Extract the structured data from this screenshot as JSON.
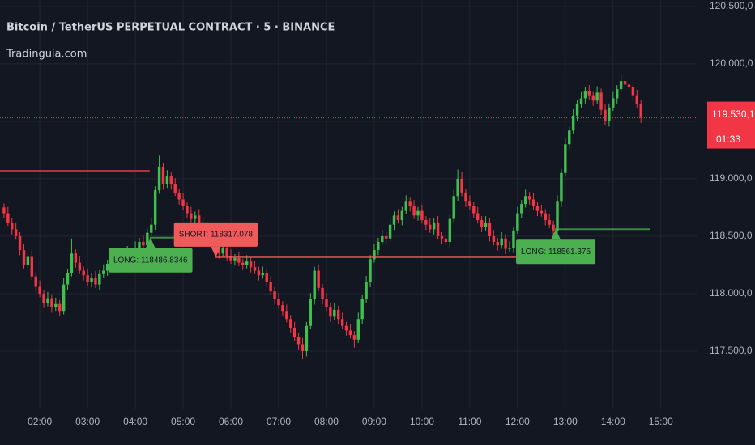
{
  "chart_data": {
    "type": "candlestick",
    "title": "Bitcoin / TetherUS PERPETUAL CONTRACT · 5 · BINANCE",
    "subtitle": "Tradinguia.com",
    "up_color": "#3fbf4f",
    "down_color": "#f23645",
    "xlim": [
      70,
      945
    ],
    "ylim": [
      117000,
      120555
    ],
    "grid": true,
    "xticks": [
      {
        "value": 120,
        "label": "02:00"
      },
      {
        "value": 180,
        "label": "03:00"
      },
      {
        "value": 240,
        "label": "04:00"
      },
      {
        "value": 300,
        "label": "05:00"
      },
      {
        "value": 360,
        "label": "06:00"
      },
      {
        "value": 420,
        "label": "07:00"
      },
      {
        "value": 480,
        "label": "08:00"
      },
      {
        "value": 540,
        "label": "09:00"
      },
      {
        "value": 600,
        "label": "10:00"
      },
      {
        "value": 660,
        "label": "11:00"
      },
      {
        "value": 720,
        "label": "12:00"
      },
      {
        "value": 780,
        "label": "13:00"
      },
      {
        "value": 840,
        "label": "14:00"
      },
      {
        "value": 900,
        "label": "15:00"
      }
    ],
    "yticks": [
      {
        "value": 117500,
        "label": "117.500,0"
      },
      {
        "value": 118000,
        "label": "118.000,0"
      },
      {
        "value": 118500,
        "label": "118.500,0"
      },
      {
        "value": 119000,
        "label": "119.000,0"
      },
      {
        "value": 119500,
        "label": "119.500,0"
      },
      {
        "value": 120000,
        "label": "120.000,0"
      },
      {
        "value": 120500,
        "label": "120.500,0"
      }
    ],
    "x": [
      75,
      80,
      85,
      90,
      95,
      100,
      105,
      110,
      115,
      120,
      125,
      130,
      135,
      140,
      145,
      150,
      155,
      160,
      165,
      170,
      175,
      180,
      185,
      190,
      195,
      200,
      205,
      210,
      215,
      220,
      225,
      230,
      235,
      240,
      245,
      250,
      255,
      260,
      265,
      270,
      275,
      280,
      285,
      290,
      295,
      300,
      305,
      310,
      315,
      320,
      325,
      330,
      335,
      340,
      345,
      350,
      355,
      360,
      365,
      370,
      375,
      380,
      385,
      390,
      395,
      400,
      405,
      410,
      415,
      420,
      425,
      430,
      435,
      440,
      445,
      450,
      455,
      460,
      465,
      470,
      475,
      480,
      485,
      490,
      495,
      500,
      505,
      510,
      515,
      520,
      525,
      530,
      535,
      540,
      545,
      550,
      555,
      560,
      565,
      570,
      575,
      580,
      585,
      590,
      595,
      600,
      605,
      610,
      615,
      620,
      625,
      630,
      635,
      640,
      645,
      650,
      655,
      660,
      665,
      670,
      675,
      680,
      685,
      690,
      695,
      700,
      705,
      710,
      715,
      720,
      725,
      730,
      735,
      740,
      745,
      750,
      755,
      760,
      765,
      770,
      775,
      780,
      785,
      790,
      795,
      800,
      805,
      810,
      815,
      820,
      825,
      830,
      835,
      840,
      845,
      850,
      855,
      860,
      865,
      870,
      875
    ],
    "open": [
      118750,
      118700,
      118620,
      118560,
      118500,
      118380,
      118250,
      118320,
      118150,
      118060,
      118000,
      117920,
      117960,
      117880,
      117910,
      117850,
      118080,
      118180,
      118350,
      118270,
      118200,
      118160,
      118100,
      118140,
      118080,
      118170,
      118200,
      118260,
      118230,
      118300,
      118280,
      118330,
      118360,
      118310,
      118400,
      118450,
      118420,
      118530,
      118600,
      118900,
      119100,
      118950,
      119020,
      118950,
      118880,
      118820,
      118760,
      118700,
      118650,
      118680,
      118600,
      118620,
      118550,
      118480,
      118420,
      118350,
      118400,
      118330,
      118290,
      118310,
      118270,
      118250,
      118280,
      118230,
      118200,
      118160,
      118180,
      118100,
      118020,
      117950,
      117900,
      117850,
      117780,
      117700,
      117620,
      117560,
      117500,
      117720,
      117950,
      118200,
      118050,
      117950,
      117880,
      117800,
      117860,
      117780,
      117720,
      117680,
      117640,
      117600,
      117780,
      117950,
      118100,
      118300,
      118380,
      118450,
      118500,
      118480,
      118600,
      118680,
      118640,
      118720,
      118800,
      118760,
      118680,
      118720,
      118640,
      118600,
      118560,
      118620,
      118500,
      118480,
      118450,
      118650,
      118850,
      119000,
      118880,
      118800,
      118760,
      118700,
      118640,
      118580,
      118620,
      118500,
      118450,
      118420,
      118480,
      118390,
      118400,
      118550,
      118700,
      118780,
      118850,
      118820,
      118760,
      118720,
      118700,
      118640,
      118600,
      118550,
      118800,
      119050,
      119300,
      119420,
      119550,
      119650,
      119700,
      119760,
      119720,
      119680,
      119750,
      119600,
      119500,
      119620,
      119700,
      119780,
      119850,
      119820,
      119800,
      119720,
      119650
    ],
    "high": [
      118785,
      118755,
      118655,
      118615,
      118535,
      118435,
      118355,
      118375,
      118185,
      118115,
      118035,
      118015,
      117995,
      117965,
      117945,
      118135,
      118215,
      118480,
      118385,
      118325,
      118235,
      118215,
      118175,
      118195,
      118205,
      118255,
      118295,
      118315,
      118335,
      118355,
      118365,
      118415,
      118395,
      118455,
      118485,
      118505,
      118565,
      118655,
      118935,
      119200,
      119135,
      119075,
      119055,
      119005,
      118915,
      118875,
      118795,
      118755,
      118715,
      118735,
      118655,
      118675,
      118585,
      118535,
      118455,
      118455,
      118435,
      118385,
      118345,
      118365,
      118305,
      118335,
      118315,
      118285,
      118235,
      118235,
      118215,
      118155,
      118055,
      118005,
      117935,
      117905,
      117815,
      117755,
      117655,
      117615,
      117755,
      118005,
      118235,
      118255,
      118085,
      118005,
      117915,
      117915,
      117895,
      117835,
      117755,
      117735,
      117675,
      117835,
      117985,
      118155,
      118335,
      118435,
      118485,
      118555,
      118535,
      118655,
      118715,
      118735,
      118755,
      118855,
      118835,
      118815,
      118755,
      118775,
      118675,
      118655,
      118655,
      118675,
      118535,
      118535,
      118685,
      118905,
      119080,
      119055,
      118915,
      118855,
      118795,
      118755,
      118675,
      118675,
      118655,
      118555,
      118485,
      118535,
      118515,
      118455,
      118585,
      118755,
      118815,
      118905,
      118885,
      118875,
      118795,
      118775,
      118735,
      118695,
      118635,
      118855,
      119085,
      119355,
      119455,
      119605,
      119685,
      119755,
      119795,
      119815,
      119755,
      119805,
      119785,
      119655,
      119655,
      119755,
      119815,
      119905,
      119885,
      119875,
      119835,
      119775,
      119685
    ],
    "low": [
      118655,
      118590,
      118515,
      118470,
      118335,
      118220,
      118205,
      118120,
      118015,
      117970,
      117875,
      117890,
      117835,
      117850,
      117805,
      117820,
      118035,
      118150,
      118225,
      118170,
      118115,
      118070,
      118055,
      118050,
      118035,
      118140,
      118155,
      118200,
      118185,
      118250,
      118235,
      118300,
      118265,
      118280,
      118355,
      118390,
      118375,
      118500,
      118555,
      118870,
      118905,
      118920,
      118905,
      118850,
      118775,
      118730,
      118655,
      118620,
      118605,
      118570,
      118555,
      118520,
      118435,
      118390,
      118305,
      118320,
      118285,
      118260,
      118245,
      118240,
      118205,
      118220,
      118185,
      118170,
      118115,
      118130,
      118055,
      117990,
      117905,
      117870,
      117805,
      117750,
      117655,
      117590,
      117515,
      117430,
      117455,
      117690,
      117905,
      118020,
      117905,
      117850,
      117755,
      117770,
      117735,
      117690,
      117635,
      117610,
      117530,
      117570,
      117735,
      117920,
      118055,
      118270,
      118335,
      118420,
      118435,
      118450,
      118555,
      118610,
      118595,
      118690,
      118715,
      118650,
      118635,
      118610,
      118555,
      118530,
      118515,
      118470,
      118435,
      118420,
      118405,
      118620,
      118805,
      118850,
      118755,
      118730,
      118655,
      118610,
      118535,
      118550,
      118455,
      118420,
      118375,
      118390,
      118345,
      118360,
      118355,
      118520,
      118655,
      118750,
      118775,
      118730,
      118675,
      118670,
      118595,
      118570,
      118505,
      118520,
      118755,
      119020,
      119255,
      119390,
      119505,
      119620,
      119655,
      119690,
      119635,
      119650,
      119555,
      119470,
      119455,
      119590,
      119655,
      119750,
      119775,
      119770,
      119675,
      119620,
      119485
    ],
    "close": [
      118700,
      118620,
      118560,
      118500,
      118380,
      118250,
      118320,
      118150,
      118060,
      118000,
      117920,
      117960,
      117880,
      117910,
      117850,
      118080,
      118180,
      118350,
      118270,
      118200,
      118160,
      118100,
      118140,
      118080,
      118170,
      118200,
      118260,
      118230,
      118300,
      118280,
      118330,
      118360,
      118310,
      118400,
      118450,
      118420,
      118530,
      118600,
      118900,
      119100,
      118950,
      119020,
      118950,
      118880,
      118820,
      118760,
      118700,
      118650,
      118680,
      118600,
      118620,
      118550,
      118480,
      118420,
      118350,
      118400,
      118330,
      118290,
      118310,
      118270,
      118250,
      118280,
      118230,
      118200,
      118160,
      118180,
      118100,
      118020,
      117950,
      117900,
      117850,
      117780,
      117700,
      117620,
      117560,
      117500,
      117720,
      117950,
      118200,
      118050,
      117950,
      117880,
      117800,
      117860,
      117780,
      117720,
      117680,
      117640,
      117600,
      117780,
      117950,
      118100,
      118300,
      118380,
      118450,
      118500,
      118480,
      118600,
      118680,
      118640,
      118720,
      118800,
      118760,
      118680,
      118720,
      118640,
      118600,
      118560,
      118620,
      118500,
      118480,
      118450,
      118650,
      118850,
      119000,
      118880,
      118800,
      118760,
      118700,
      118640,
      118580,
      118620,
      118500,
      118450,
      118420,
      118480,
      118390,
      118400,
      118550,
      118700,
      118780,
      118850,
      118820,
      118760,
      118720,
      118700,
      118640,
      118600,
      118550,
      118800,
      119050,
      119300,
      119420,
      119550,
      119650,
      119700,
      119760,
      119720,
      119680,
      119750,
      119600,
      119500,
      119620,
      119700,
      119780,
      119850,
      119820,
      119800,
      119720,
      119650,
      119530
    ],
    "lines": [
      {
        "value": 119070,
        "from": 70,
        "to": 258,
        "color": "#b2323c"
      }
    ],
    "signals": [
      {
        "label": "LONG: 118486.8346",
        "price": 118486.8346,
        "from": 258,
        "to": 340,
        "color": "#4caf50"
      },
      {
        "label": "SHORT: 118317.078",
        "price": 118317.078,
        "from": 340,
        "to": 726,
        "color": "#f05a5a"
      },
      {
        "label": "LONG: 118561.375",
        "price": 118561.375,
        "from": 767,
        "to": 887,
        "color": "#4caf50"
      }
    ],
    "last_price": {
      "value": 119530.1,
      "label": "119.530,1"
    },
    "countdown": "01:33"
  }
}
